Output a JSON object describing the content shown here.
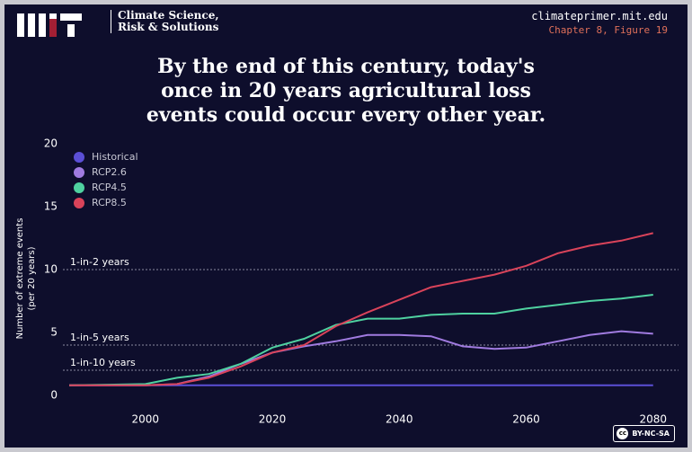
{
  "header": {
    "brand": "Climate Science, Risk & Solutions",
    "url": "climateprimer.mit.edu",
    "figure": "Chapter 8, Figure 19"
  },
  "license": "BY-NC-SA",
  "chart_data": {
    "type": "line",
    "title": [
      "By the end of this century, today's",
      "once in 20 years agricultural loss",
      "events could occur every other year."
    ],
    "y_label": [
      "Number of extreme events",
      "(per 20 years)"
    ],
    "x": [
      1988,
      2000,
      2005,
      2010,
      2015,
      2020,
      2025,
      2030,
      2035,
      2040,
      2045,
      2050,
      2055,
      2060,
      2065,
      2070,
      2075,
      2080
    ],
    "series": [
      {
        "name": "Historical",
        "color": "#5b4fd6",
        "values": [
          0.8,
          0.8,
          0.8,
          0.8,
          0.8,
          0.8,
          0.8,
          0.8,
          0.8,
          0.8,
          0.8,
          0.8,
          0.8,
          0.8,
          0.8,
          0.8,
          0.8,
          0.8
        ]
      },
      {
        "name": "RCP2.6",
        "color": "#a07be0",
        "values": [
          0.8,
          0.8,
          0.9,
          1.5,
          2.5,
          3.4,
          3.9,
          4.3,
          4.8,
          4.8,
          4.7,
          3.9,
          3.7,
          3.8,
          4.3,
          4.8,
          5.1,
          4.9
        ]
      },
      {
        "name": "RCP4.5",
        "color": "#4fd1a0",
        "values": [
          0.8,
          0.9,
          1.4,
          1.7,
          2.5,
          3.8,
          4.5,
          5.6,
          6.1,
          6.1,
          6.4,
          6.5,
          6.5,
          6.9,
          7.2,
          7.5,
          7.7,
          8.0
        ]
      },
      {
        "name": "RCP8.5",
        "color": "#d9435a",
        "values": [
          0.8,
          0.8,
          0.9,
          1.4,
          2.3,
          3.4,
          4.0,
          5.5,
          6.6,
          7.6,
          8.6,
          9.1,
          9.6,
          10.3,
          11.3,
          11.9,
          12.3,
          12.9
        ]
      }
    ],
    "reference_lines": [
      {
        "value": 10,
        "label": "1-in-2 years"
      },
      {
        "value": 4,
        "label": "1-in-5 years"
      },
      {
        "value": 2,
        "label": "1-in-10 years"
      }
    ],
    "xlim": [
      1987,
      2084
    ],
    "xticks": [
      2000,
      2020,
      2040,
      2060,
      2080
    ],
    "ylim": [
      0,
      20
    ],
    "yticks": [
      0,
      5,
      10,
      15,
      20
    ],
    "legend": "upper left"
  }
}
